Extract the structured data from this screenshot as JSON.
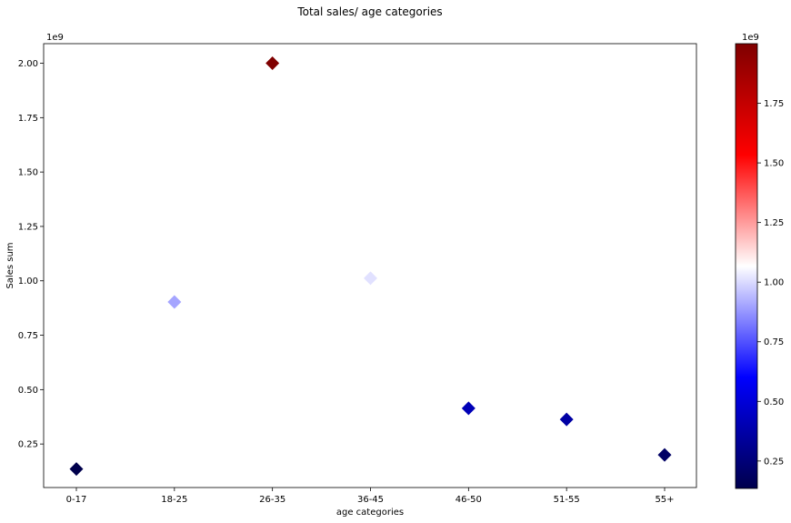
{
  "chart_data": {
    "type": "scatter",
    "title": "Total sales/ age categories",
    "xlabel": "age categories",
    "ylabel": "Sales sum",
    "y_scale_label": "1e9",
    "categories": [
      "0-17",
      "18-25",
      "26-35",
      "36-45",
      "46-50",
      "51-55",
      "55+"
    ],
    "values": [
      0.135,
      0.903,
      2.0,
      1.012,
      0.414,
      0.363,
      0.2
    ],
    "ylim": [
      0.05,
      2.09
    ],
    "yticks": [
      0.25,
      0.5,
      0.75,
      1.0,
      1.25,
      1.5,
      1.75,
      2.0
    ],
    "ytick_labels": [
      "0.25",
      "0.50",
      "0.75",
      "1.00",
      "1.25",
      "1.50",
      "1.75",
      "2.00"
    ],
    "marker": "diamond",
    "grid": false,
    "colorbar": {
      "colormap": "seismic",
      "range": [
        0.135,
        2.0
      ],
      "scale_label": "1e9",
      "ticks": [
        0.25,
        0.5,
        0.75,
        1.0,
        1.25,
        1.5,
        1.75
      ],
      "tick_labels": [
        "0.25",
        "0.50",
        "0.75",
        "1.00",
        "1.25",
        "1.50",
        "1.75"
      ]
    }
  }
}
